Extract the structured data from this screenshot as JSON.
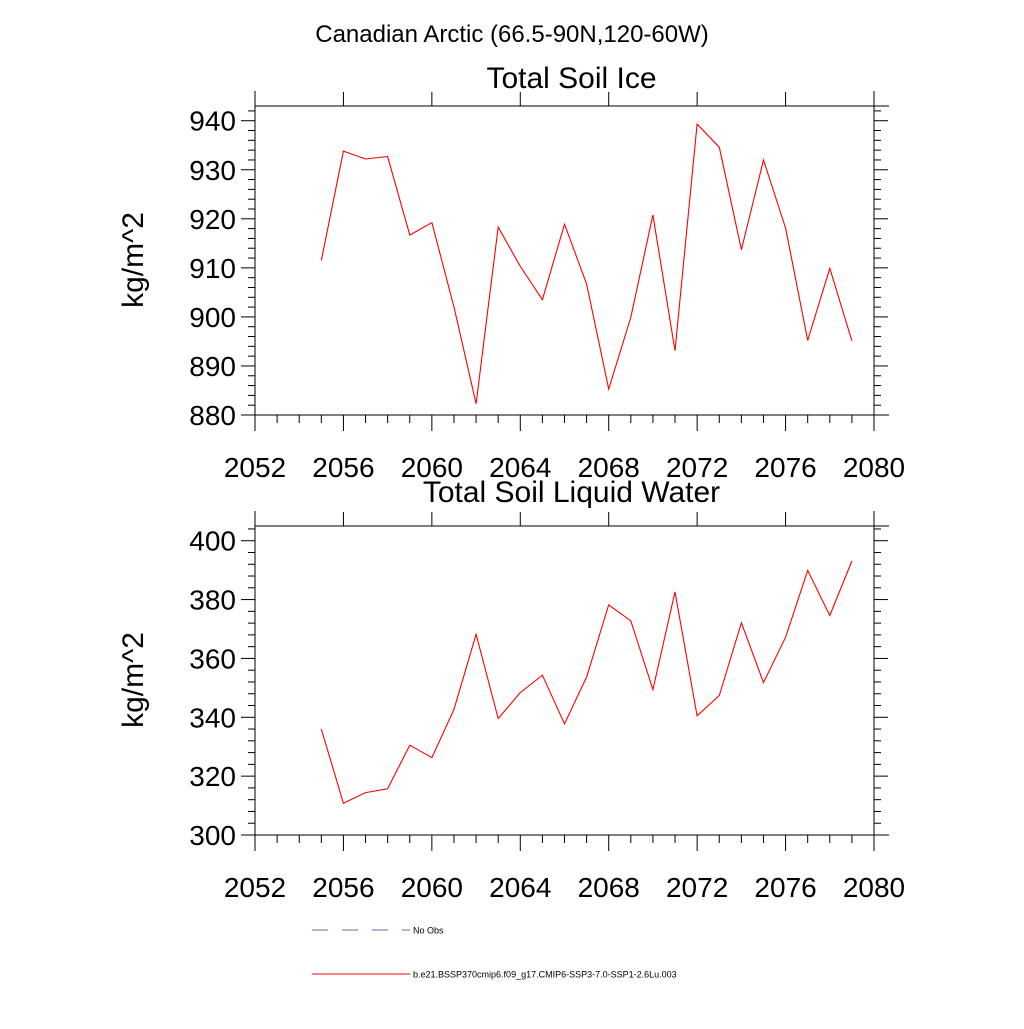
{
  "figure_title": "Canadian Arctic (66.5-90N,120-60W)",
  "chart_data": [
    {
      "type": "line",
      "title": "Total Soil Ice",
      "xlabel": "",
      "ylabel": "kg/m^2",
      "xlim": [
        2052,
        2080
      ],
      "ylim": [
        880,
        943
      ],
      "x_ticks": [
        "2052",
        "2056",
        "2060",
        "2064",
        "2068",
        "2072",
        "2076",
        "2080"
      ],
      "y_ticks": [
        "880",
        "890",
        "900",
        "910",
        "920",
        "930",
        "940"
      ],
      "grid": false,
      "series": [
        {
          "name": "b.e21.BSSP370cmip6.f09_g17.CMIP6-SSP3-7.0-SSP1-2.6Lu.003",
          "color": "#ff0000",
          "x": [
            2055,
            2056,
            2057,
            2058,
            2059,
            2060,
            2061,
            2062,
            2063,
            2064,
            2065,
            2066,
            2067,
            2068,
            2069,
            2070,
            2071,
            2072,
            2073,
            2074,
            2075,
            2076,
            2077,
            2078,
            2079
          ],
          "y": [
            911.5,
            933.8,
            932.2,
            932.7,
            916.7,
            919.2,
            902.0,
            882.3,
            918.3,
            910.3,
            903.5,
            918.9,
            906.7,
            885.3,
            899.9,
            920.8,
            893.1,
            939.3,
            934.6,
            913.7,
            932.0,
            918.1,
            895.2,
            909.9,
            895.1
          ]
        }
      ]
    },
    {
      "type": "line",
      "title": "Total Soil Liquid Water",
      "xlabel": "",
      "ylabel": "kg/m^2",
      "xlim": [
        2052,
        2080
      ],
      "ylim": [
        300,
        405
      ],
      "x_ticks": [
        "2052",
        "2056",
        "2060",
        "2064",
        "2068",
        "2072",
        "2076",
        "2080"
      ],
      "y_ticks": [
        "300",
        "320",
        "340",
        "360",
        "380",
        "400"
      ],
      "grid": false,
      "series": [
        {
          "name": "b.e21.BSSP370cmip6.f09_g17.CMIP6-SSP3-7.0-SSP1-2.6Lu.003",
          "color": "#ff0000",
          "x": [
            2055,
            2056,
            2057,
            2058,
            2059,
            2060,
            2061,
            2062,
            2063,
            2064,
            2065,
            2066,
            2067,
            2068,
            2069,
            2070,
            2071,
            2072,
            2073,
            2074,
            2075,
            2076,
            2077,
            2078,
            2079
          ],
          "y": [
            336.0,
            310.8,
            314.4,
            315.7,
            330.5,
            326.3,
            342.7,
            368.2,
            339.6,
            348.4,
            354.3,
            337.8,
            353.7,
            378.2,
            372.8,
            349.4,
            382.6,
            340.5,
            347.4,
            372.1,
            351.8,
            367.2,
            389.9,
            374.6,
            393.1
          ]
        }
      ]
    }
  ],
  "legend": {
    "placement": "bottom",
    "entries": [
      {
        "label": "No Obs",
        "color": "#6b6bb0",
        "style": "dashed"
      },
      {
        "label": "b.e21.BSSP370cmip6.f09_g17.CMIP6-SSP3-7.0-SSP1-2.6Lu.003",
        "color": "#ff0000",
        "style": "solid"
      }
    ]
  }
}
